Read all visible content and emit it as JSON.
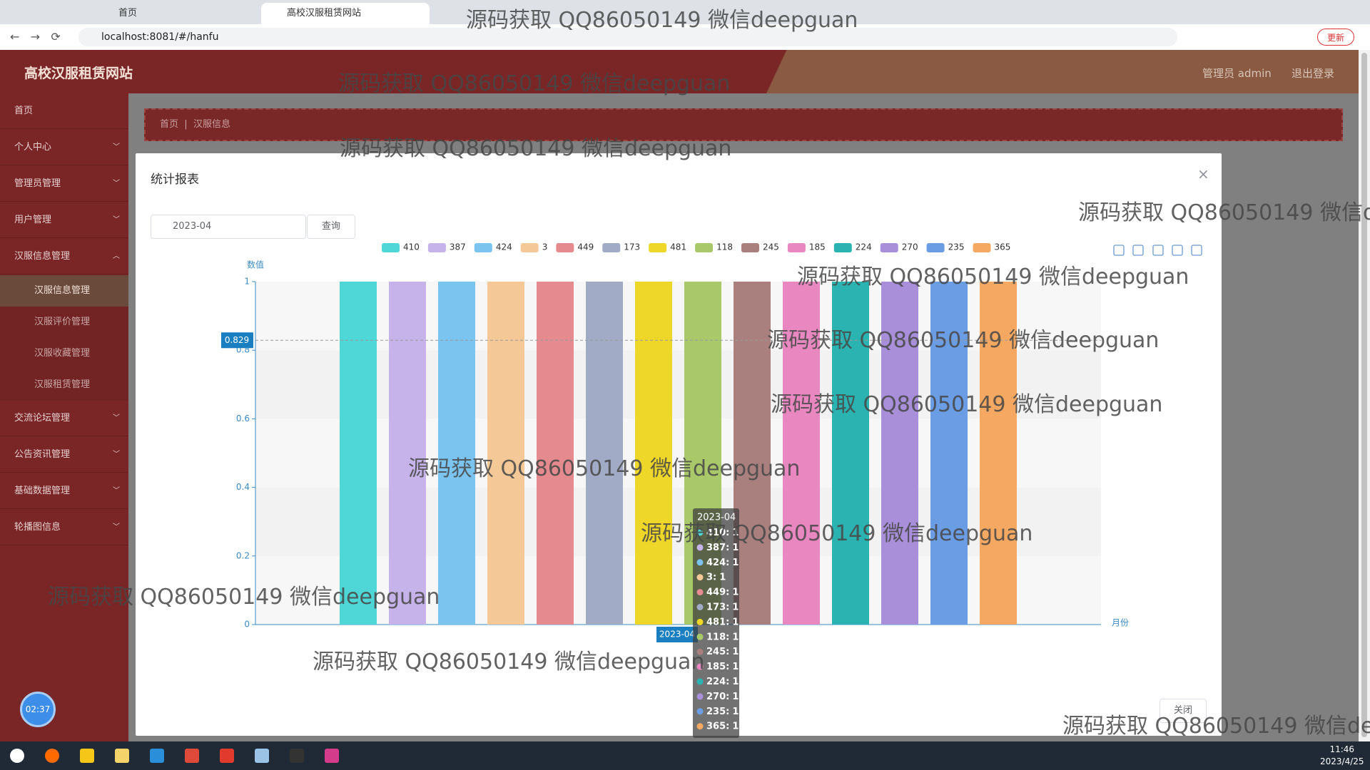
{
  "browser": {
    "tabs": [
      "首页",
      "高校汉服租赁网站"
    ],
    "url": "localhost:8081/#/hanfu",
    "update_button": "更新"
  },
  "header": {
    "title": "高校汉服租赁网站",
    "user": "管理员 admin",
    "logout": "退出登录"
  },
  "sidebar": {
    "items": [
      "首页",
      "个人中心",
      "管理员管理",
      "用户管理",
      "汉服信息管理",
      "交流论坛管理",
      "公告资讯管理",
      "基础数据管理",
      "轮播图信息"
    ],
    "submenu": [
      "汉服信息管理",
      "汉服评价管理",
      "汉服收藏管理",
      "汉服租赁管理"
    ]
  },
  "breadcrumb": [
    "首页",
    "汉服信息"
  ],
  "timer": "02:37",
  "modal": {
    "title": "统计报表",
    "date_input": "2023-04",
    "query_button": "查询",
    "close_button": "关闭"
  },
  "chart_data": {
    "type": "bar",
    "y_axis_label": "数值",
    "x_axis_label": "月份",
    "categories": [
      "2023-04"
    ],
    "ylim": [
      0,
      1
    ],
    "yticks": [
      0,
      0.2,
      0.4,
      0.6,
      0.8,
      1
    ],
    "axis_pointer_value": 0.829,
    "tooltip_separator": ":",
    "series": [
      {
        "name": "410",
        "color": "#4fd6d6",
        "values": [
          1
        ]
      },
      {
        "name": "387",
        "color": "#c5b3ea",
        "values": [
          1
        ]
      },
      {
        "name": "424",
        "color": "#7cc4f0",
        "values": [
          1
        ]
      },
      {
        "name": "3",
        "color": "#f5c898",
        "values": [
          1
        ]
      },
      {
        "name": "449",
        "color": "#e58a8f",
        "values": [
          1
        ]
      },
      {
        "name": "173",
        "color": "#a1abc5",
        "values": [
          1
        ]
      },
      {
        "name": "481",
        "color": "#eed729",
        "values": [
          1
        ]
      },
      {
        "name": "118",
        "color": "#a8c86a",
        "values": [
          1
        ]
      },
      {
        "name": "245",
        "color": "#a9807d",
        "values": [
          1
        ]
      },
      {
        "name": "185",
        "color": "#e987c0",
        "values": [
          1
        ]
      },
      {
        "name": "224",
        "color": "#2ab3b0",
        "values": [
          1
        ]
      },
      {
        "name": "270",
        "color": "#a98ed9",
        "values": [
          1
        ]
      },
      {
        "name": "235",
        "color": "#6a9de3",
        "values": [
          1
        ]
      },
      {
        "name": "365",
        "color": "#f5a862",
        "values": [
          1
        ]
      }
    ]
  },
  "watermark": "源码获取 QQ86050149 微信deepguan",
  "taskbar": {
    "time": "11:46",
    "date": "2023/4/25"
  }
}
